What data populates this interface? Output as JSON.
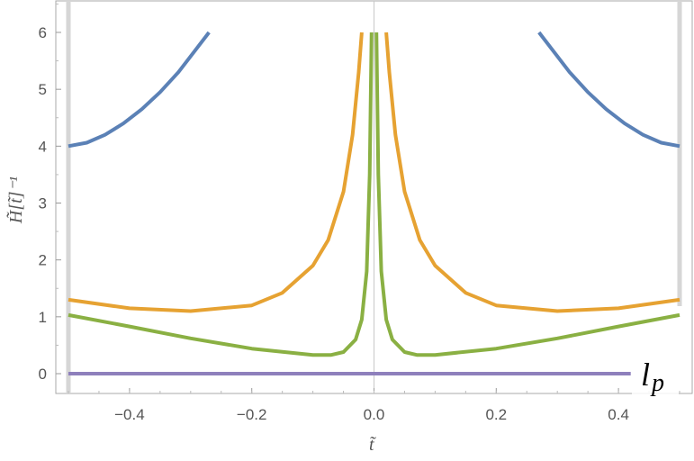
{
  "chart_data": {
    "type": "line",
    "xlabel": "t̃",
    "ylabel": "H̃[t̃]⁻¹",
    "xlim": [
      -0.5,
      0.5
    ],
    "ylim": [
      -0.6,
      6.5
    ],
    "x_ticks": [
      "−0.4",
      "−0.2",
      "0.0",
      "0.2",
      "0.4"
    ],
    "x_tick_values": [
      -0.4,
      -0.2,
      0.0,
      0.2,
      0.4
    ],
    "y_ticks": [
      "0",
      "1",
      "2",
      "3",
      "4",
      "5",
      "6"
    ],
    "y_tick_values": [
      0,
      1,
      2,
      3,
      4,
      5,
      6
    ],
    "annotation": "l_p",
    "grid": false,
    "series": [
      {
        "color": "#5b81b6",
        "x": [
          -0.5,
          -0.47,
          -0.44,
          -0.41,
          -0.38,
          -0.35,
          -0.32,
          -0.29,
          -0.27
        ],
        "y": [
          4.0,
          4.06,
          4.2,
          4.4,
          4.65,
          4.95,
          5.3,
          5.72,
          6.0
        ],
        "x2": [
          0.27,
          0.29,
          0.32,
          0.35,
          0.38,
          0.41,
          0.44,
          0.47,
          0.5
        ],
        "y2": [
          6.0,
          5.72,
          5.3,
          4.95,
          4.65,
          4.4,
          4.2,
          4.06,
          4.0
        ]
      },
      {
        "color": "#e6a232",
        "x": [
          -0.5,
          -0.4,
          -0.3,
          -0.2,
          -0.15,
          -0.1,
          -0.075,
          -0.05,
          -0.035,
          -0.025,
          -0.02
        ],
        "y": [
          1.3,
          1.15,
          1.1,
          1.2,
          1.42,
          1.9,
          2.35,
          3.2,
          4.2,
          5.3,
          6.0
        ],
        "x2": [
          0.02,
          0.025,
          0.035,
          0.05,
          0.075,
          0.1,
          0.15,
          0.2,
          0.3,
          0.4,
          0.5
        ],
        "y2": [
          6.0,
          5.3,
          4.2,
          3.2,
          2.35,
          1.9,
          1.42,
          1.2,
          1.1,
          1.15,
          1.3
        ]
      },
      {
        "color": "#8ab043",
        "x": [
          -0.5,
          -0.4,
          -0.3,
          -0.2,
          -0.1,
          -0.07,
          -0.05,
          -0.03,
          -0.02,
          -0.012,
          -0.007,
          -0.004
        ],
        "y": [
          1.03,
          0.83,
          0.62,
          0.44,
          0.33,
          0.33,
          0.38,
          0.6,
          0.95,
          1.8,
          3.5,
          6.0
        ],
        "x2": [
          0.004,
          0.007,
          0.012,
          0.02,
          0.03,
          0.05,
          0.07,
          0.1,
          0.2,
          0.3,
          0.4,
          0.5
        ],
        "y2": [
          6.0,
          3.5,
          1.8,
          0.95,
          0.6,
          0.38,
          0.33,
          0.33,
          0.44,
          0.62,
          0.83,
          1.03
        ]
      },
      {
        "color": "#8e80bc",
        "x": [
          -0.5,
          0.42
        ],
        "y": [
          0,
          0
        ]
      }
    ]
  }
}
